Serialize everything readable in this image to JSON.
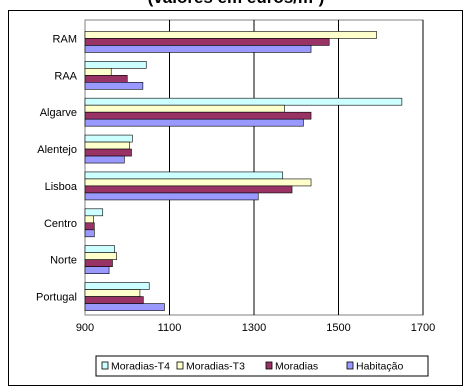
{
  "chart_data": {
    "type": "bar",
    "orientation": "horizontal",
    "title": "(valores em euros/m²)",
    "categories": [
      "Portugal",
      "Norte",
      "Centro",
      "Lisboa",
      "Alentejo",
      "Algarve",
      "RAA",
      "RAM"
    ],
    "series": [
      {
        "name": "Moradias-T4",
        "color": "#CCFFFF",
        "values": [
          1052,
          970,
          942,
          1368,
          1012,
          1650,
          1045,
          null
        ]
      },
      {
        "name": "Moradias-T3",
        "color": "#FFFFCC",
        "values": [
          1030,
          975,
          920,
          1435,
          1005,
          1372,
          962,
          1590
        ]
      },
      {
        "name": "Moradias",
        "color": "#993366",
        "values": [
          1038,
          965,
          922,
          1390,
          1010,
          1435,
          1000,
          1478
        ]
      },
      {
        "name": "Habitação",
        "color": "#9999FF",
        "values": [
          1088,
          957,
          922,
          1310,
          993,
          1417,
          1037,
          1435
        ]
      }
    ],
    "xlim": [
      900,
      1700
    ],
    "xticks": [
      "900",
      "1100",
      "1300",
      "1500",
      "1700"
    ],
    "xlabel": "",
    "ylabel": "",
    "grid": true,
    "legend_position": "bottom"
  }
}
